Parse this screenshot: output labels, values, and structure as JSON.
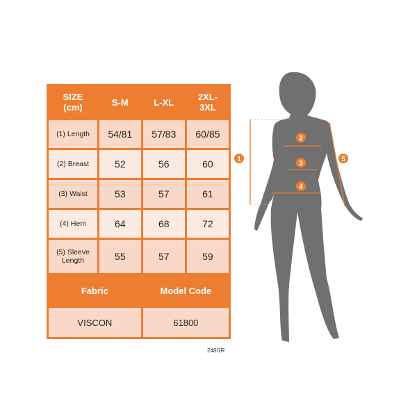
{
  "table": {
    "headers": [
      "SIZE\n(cm)",
      "S-M",
      "L-XL",
      "2XL-\n3XL"
    ],
    "rows": [
      {
        "label": "(1) Length",
        "values": [
          "54/81",
          "57/83",
          "60/85"
        ]
      },
      {
        "label": "(2) Breast",
        "values": [
          "52",
          "56",
          "60"
        ]
      },
      {
        "label": "(3) Waist",
        "values": [
          "53",
          "57",
          "61"
        ]
      },
      {
        "label": "(4) Hem",
        "values": [
          "64",
          "68",
          "72"
        ]
      },
      {
        "label": "(5) Sleeve Length",
        "values": [
          "55",
          "57",
          "59"
        ]
      }
    ],
    "fabric_label": "Fabric",
    "model_code_label": "Model Code",
    "fabric_value": "VISCON",
    "model_code_value": "61800"
  },
  "product_code": "248GR",
  "figure": {
    "markers": [
      "1",
      "2",
      "3",
      "4",
      "5"
    ]
  },
  "colors": {
    "accent": "#ED7D31",
    "silhouette": "#707070"
  }
}
